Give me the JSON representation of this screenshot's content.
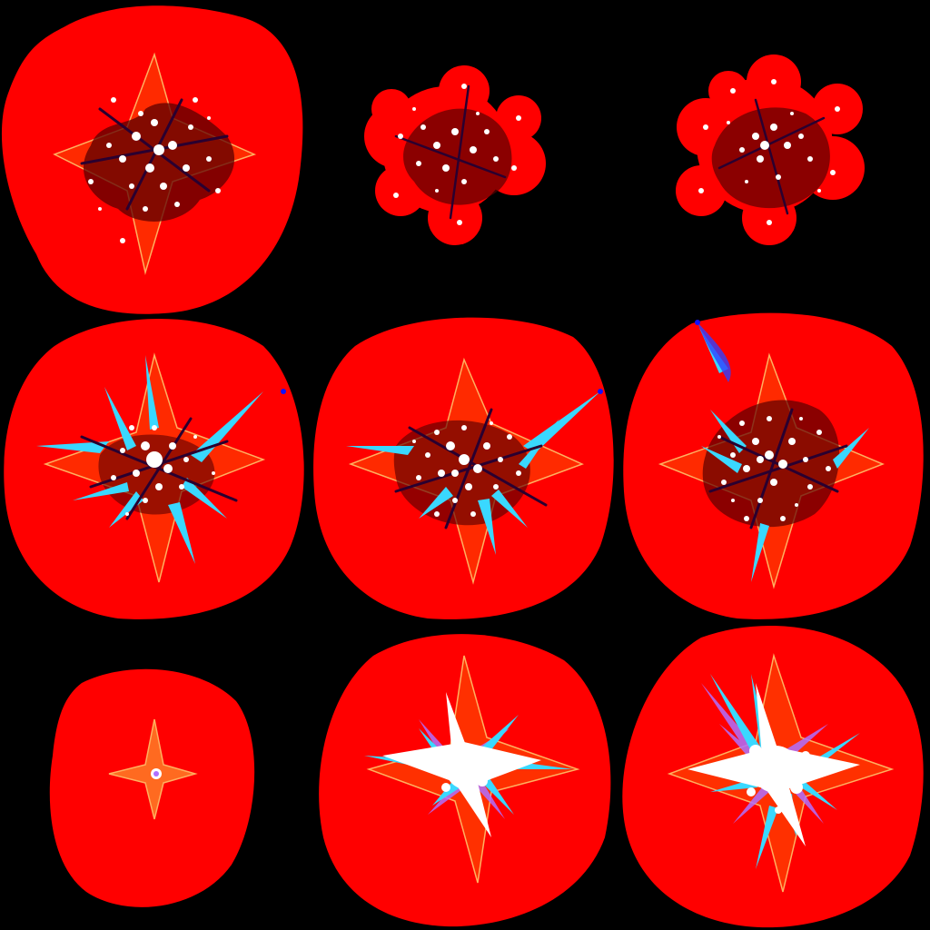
{
  "sprite_sheet": {
    "grid": {
      "rows": 3,
      "columns": 3
    },
    "colors": {
      "background": "#000000",
      "glow": "#ff0000",
      "glow_edge": "#ff3a1a",
      "spark": "#ffffff",
      "streak": "#2a0030",
      "ember": "#5a0000",
      "outline": "#ffb060",
      "ice": "#3ad8ff",
      "violet": "#b070ff",
      "blue_tip": "#1010ff"
    },
    "frames": [
      {
        "row": 0,
        "col": 0,
        "kind": "burst-scatter",
        "has_star_outline": true,
        "sparks": 22,
        "ice_shards": 0
      },
      {
        "row": 0,
        "col": 1,
        "kind": "sparks-cluster",
        "has_star_outline": false,
        "sparks": 18,
        "ice_shards": 0
      },
      {
        "row": 0,
        "col": 2,
        "kind": "sparks-cluster",
        "has_star_outline": false,
        "sparks": 20,
        "ice_shards": 0
      },
      {
        "row": 1,
        "col": 0,
        "kind": "burst-ice",
        "has_star_outline": true,
        "sparks": 16,
        "ice_shards": 8
      },
      {
        "row": 1,
        "col": 1,
        "kind": "burst-ice",
        "has_star_outline": true,
        "sparks": 20,
        "ice_shards": 6
      },
      {
        "row": 1,
        "col": 2,
        "kind": "burst-ice",
        "has_star_outline": true,
        "sparks": 22,
        "ice_shards": 5
      },
      {
        "row": 2,
        "col": 0,
        "kind": "flash-small",
        "has_star_outline": true,
        "sparks": 1,
        "ice_shards": 0
      },
      {
        "row": 2,
        "col": 1,
        "kind": "flash-bright",
        "has_star_outline": true,
        "sparks": 4,
        "ice_shards": 6
      },
      {
        "row": 2,
        "col": 2,
        "kind": "flash-bright",
        "has_star_outline": true,
        "sparks": 5,
        "ice_shards": 8
      }
    ]
  }
}
